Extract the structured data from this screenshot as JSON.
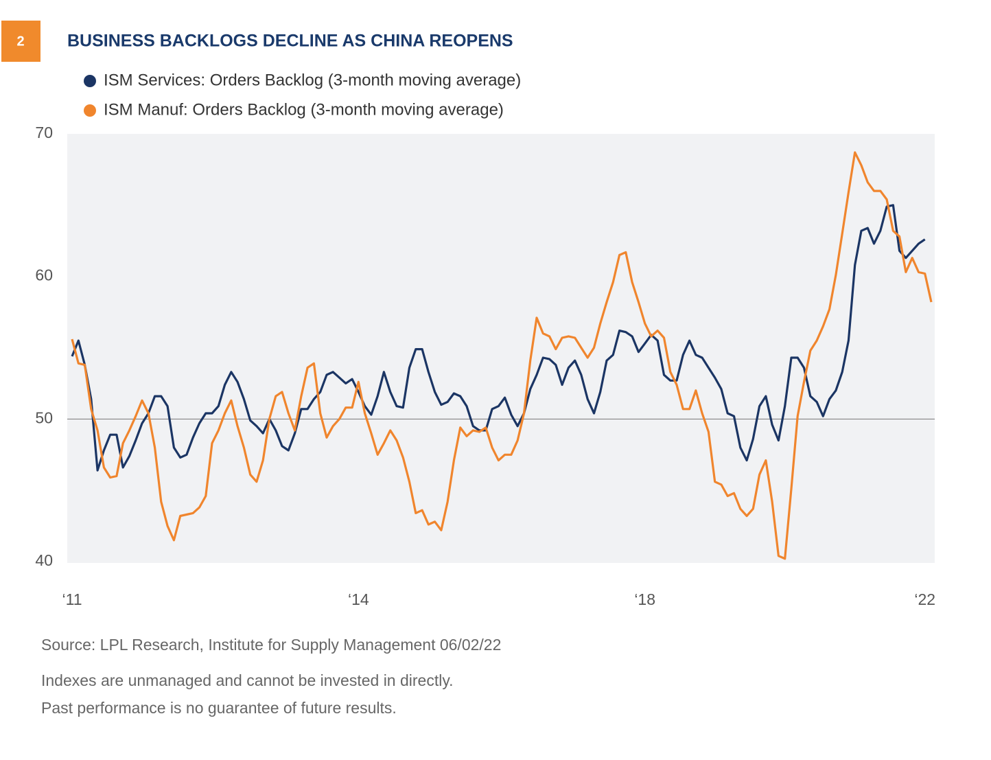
{
  "chart_data": {
    "type": "line",
    "badge": "2",
    "title": "BUSINESS BACKLOGS DECLINE AS CHINA REOPENS",
    "categories": [
      "‘11",
      null,
      null,
      null,
      null,
      null,
      null,
      null,
      null,
      null,
      null,
      null,
      null,
      null,
      null,
      null,
      null,
      null,
      null,
      null,
      null,
      null,
      null,
      null,
      null,
      null,
      null,
      null,
      null,
      null,
      null,
      null,
      null,
      null,
      null,
      null,
      null,
      null,
      null,
      null,
      null,
      null,
      null,
      null,
      null,
      "‘14",
      null,
      null,
      null,
      null,
      null,
      null,
      null,
      null,
      null,
      null,
      null,
      null,
      null,
      null,
      null,
      null,
      null,
      null,
      null,
      null,
      null,
      null,
      null,
      null,
      null,
      null,
      null,
      null,
      null,
      null,
      null,
      null,
      null,
      null,
      null,
      null,
      null,
      null,
      null,
      null,
      null,
      null,
      null,
      null,
      "‘18",
      null,
      null,
      null,
      null,
      null,
      null,
      null,
      null,
      null,
      null,
      null,
      null,
      null,
      null,
      null,
      null,
      null,
      null,
      null,
      null,
      null,
      null,
      null,
      null,
      null,
      null,
      null,
      null,
      null,
      null,
      null,
      null,
      null,
      null,
      null,
      null,
      null,
      null,
      null,
      null,
      null,
      null,
      null,
      "‘22",
      null
    ],
    "series": [
      {
        "name": "ISM Services: Orders Backlog (3-month moving average)",
        "color": "#1b3564",
        "values": [
          54.4,
          55.5,
          53.8,
          51.4,
          46.4,
          47.8,
          48.9,
          48.9,
          46.6,
          47.4,
          48.5,
          49.7,
          50.4,
          51.6,
          51.6,
          50.9,
          48.0,
          47.3,
          47.5,
          48.7,
          49.7,
          50.4,
          50.4,
          50.9,
          52.4,
          53.3,
          52.6,
          51.4,
          49.9,
          49.5,
          49.0,
          50.0,
          49.2,
          48.1,
          47.8,
          49.0,
          50.7,
          50.7,
          51.4,
          51.9,
          53.1,
          53.3,
          52.9,
          52.5,
          52.8,
          51.9,
          50.9,
          50.3,
          51.6,
          53.3,
          51.9,
          50.9,
          50.8,
          53.6,
          54.9,
          54.9,
          53.3,
          51.9,
          51.0,
          51.2,
          51.8,
          51.6,
          50.9,
          49.5,
          49.2,
          49.2,
          50.7,
          50.9,
          51.5,
          50.3,
          49.5,
          50.4,
          52.1,
          53.1,
          54.3,
          54.2,
          53.8,
          52.4,
          53.6,
          54.1,
          53.1,
          51.4,
          50.4,
          51.9,
          54.1,
          54.5,
          56.2,
          56.1,
          55.8,
          54.7,
          55.3,
          55.9,
          55.5,
          53.1,
          52.7,
          52.7,
          54.5,
          55.5,
          54.5,
          54.3,
          53.6,
          52.9,
          52.1,
          50.4,
          50.2,
          48.0,
          47.1,
          48.6,
          50.9,
          51.6,
          49.6,
          48.5,
          50.9,
          54.3,
          54.3,
          53.6,
          51.6,
          51.2,
          50.2,
          51.4,
          52.0,
          53.3,
          55.5,
          60.8,
          63.2,
          63.4,
          62.3,
          63.2,
          64.9,
          65.0,
          61.8,
          61.3,
          61.8,
          62.3,
          62.6,
          null
        ]
      },
      {
        "name": "ISM Manuf: Orders Backlog (3-month moving average)",
        "color": "#f0852d",
        "values": [
          55.6,
          53.9,
          53.8,
          50.7,
          49.2,
          46.6,
          45.9,
          46.0,
          48.3,
          49.2,
          50.2,
          51.3,
          50.4,
          48.0,
          44.2,
          42.5,
          41.5,
          43.2,
          43.3,
          43.4,
          43.8,
          44.6,
          48.3,
          49.2,
          50.4,
          51.3,
          49.5,
          48.0,
          46.1,
          45.6,
          47.1,
          50.0,
          51.6,
          51.9,
          50.4,
          49.2,
          51.6,
          53.6,
          53.9,
          50.4,
          48.7,
          49.5,
          50.0,
          50.8,
          50.8,
          52.6,
          50.4,
          49.0,
          47.5,
          48.3,
          49.2,
          48.5,
          47.3,
          45.6,
          43.4,
          43.6,
          42.6,
          42.8,
          42.2,
          44.2,
          47.1,
          49.4,
          48.8,
          49.2,
          49.1,
          49.4,
          48.0,
          47.1,
          47.5,
          47.5,
          48.5,
          50.4,
          54.1,
          57.1,
          56.0,
          55.8,
          54.9,
          55.7,
          55.8,
          55.7,
          55.0,
          54.3,
          55.0,
          56.7,
          58.2,
          59.6,
          61.5,
          61.7,
          59.6,
          58.2,
          56.7,
          55.8,
          56.2,
          55.7,
          53.3,
          52.4,
          50.7,
          50.7,
          52.0,
          50.4,
          49.1,
          45.6,
          45.4,
          44.6,
          44.8,
          43.7,
          43.2,
          43.7,
          46.1,
          47.1,
          44.2,
          40.4,
          40.2,
          45.1,
          50.2,
          52.6,
          54.8,
          55.5,
          56.5,
          57.7,
          60.1,
          63.0,
          65.9,
          68.7,
          67.8,
          66.6,
          66.0,
          66.0,
          65.4,
          63.2,
          62.8,
          60.3,
          61.3,
          60.3,
          60.2,
          58.2
        ]
      }
    ],
    "ylim": [
      40,
      70
    ],
    "yticks": [
      40,
      50,
      60,
      70
    ],
    "hline": 50,
    "grid": false,
    "legend": "top-left",
    "source": "Source: LPL Research, Institute for Supply Management  06/02/22",
    "notes": [
      "Indexes are unmanaged and cannot be invested in directly.",
      "Past performance is no guarantee of future results."
    ]
  }
}
